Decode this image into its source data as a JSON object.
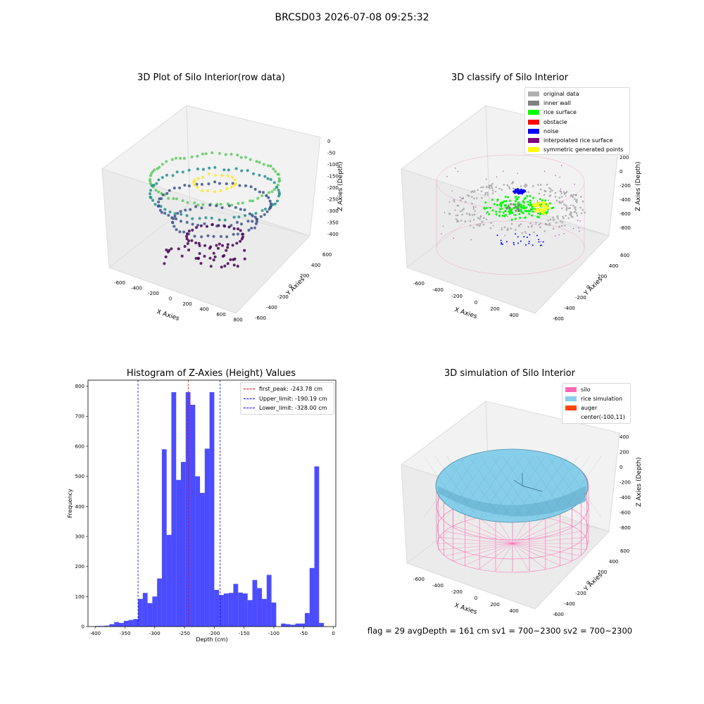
{
  "figure": {
    "suptitle": "BRCSD03 2026-07-08 09:25:32",
    "status_line": "flag = 29  avgDepth = 161 cm  sv1 = 700~2300  sv2 = 700~2300"
  },
  "panels": {
    "raw": {
      "title": "3D Plot of Silo Interior(row data)",
      "xlabel": "X Axies",
      "ylabel": "Y Axies",
      "zlabel": "Z Axies (Depth)",
      "xticks": [
        "-600",
        "-400",
        "-200",
        "0",
        "200",
        "400",
        "600",
        "800"
      ],
      "yticks": [
        "-600",
        "-400",
        "-200",
        "0",
        "200",
        "400",
        "600"
      ],
      "zticks": [
        "0",
        "-50",
        "-100",
        "-150",
        "-200",
        "-250",
        "-300",
        "-350",
        "-400"
      ],
      "colormap": [
        "#440154",
        "#3b528b",
        "#21918c",
        "#5ec962",
        "#fde725"
      ]
    },
    "classify": {
      "title": "3D classify of Silo Interior",
      "xlabel": "X Axies",
      "ylabel": "Y Axies",
      "zlabel": "Z Axies (Depth)",
      "xticks": [
        "-600",
        "-400",
        "-200",
        "0",
        "200",
        "400"
      ],
      "yticks": [
        "-600",
        "-400",
        "-200",
        "0",
        "200",
        "400",
        "600"
      ],
      "zticks": [
        "200",
        "0",
        "-200",
        "-400",
        "-600",
        "-800"
      ],
      "legend": [
        {
          "label": "original data",
          "color": "#b0b0b0"
        },
        {
          "label": "inner wall",
          "color": "#808080"
        },
        {
          "label": "rice surface",
          "color": "#00ff00"
        },
        {
          "label": "obstacle",
          "color": "#ff0000"
        },
        {
          "label": "noise",
          "color": "#0000ff"
        },
        {
          "label": "interpolated rice surface",
          "color": "#800080"
        },
        {
          "label": "symmetric generated points",
          "color": "#ffff00"
        }
      ]
    },
    "simulation": {
      "title": "3D simulation of Silo Interior",
      "xlabel": "X Axies",
      "ylabel": "Y Axies",
      "zlabel": "Z Axies (Depth)",
      "xticks": [
        "-600",
        "-400",
        "-200",
        "0",
        "200",
        "400"
      ],
      "yticks": [
        "-600",
        "-400",
        "-200",
        "0",
        "200",
        "400",
        "600"
      ],
      "zticks": [
        "400",
        "200",
        "0",
        "-200",
        "-400",
        "-600",
        "-800"
      ],
      "legend": [
        {
          "label": "silo",
          "color": "#ff69b4"
        },
        {
          "label": "rice simulation",
          "color": "#87ceeb"
        },
        {
          "label": "auger",
          "color": "#ff4500"
        },
        {
          "label": "center(-100,11)",
          "color": "#ffffff"
        }
      ]
    }
  },
  "chart_data": {
    "type": "bar",
    "title": "Histogram of Z-Axies (Height) Values",
    "xlabel": "Depth (cm)",
    "ylabel": "Frequency",
    "xlim": [
      -412,
      4
    ],
    "ylim": [
      0,
      820
    ],
    "xticks": [
      -400,
      -350,
      -300,
      -250,
      -200,
      -150,
      -100,
      -50,
      0
    ],
    "yticks": [
      0,
      100,
      200,
      300,
      400,
      500,
      600,
      700,
      800
    ],
    "bar_color": "#0000ff",
    "bins": {
      "left_edges": [
        -400,
        -392,
        -384,
        -376,
        -368,
        -360,
        -352,
        -344,
        -336,
        -328,
        -320,
        -312,
        -304,
        -296,
        -288,
        -280,
        -272,
        -264,
        -256,
        -248,
        -240,
        -232,
        -224,
        -216,
        -208,
        -200,
        -192,
        -184,
        -176,
        -168,
        -160,
        -152,
        -144,
        -136,
        -128,
        -120,
        -112,
        -104,
        -96,
        -88,
        -80,
        -72,
        -64,
        -56,
        -48,
        -40,
        -32,
        -24
      ],
      "width": 8,
      "counts": [
        2,
        2,
        3,
        8,
        15,
        12,
        19,
        22,
        25,
        92,
        112,
        78,
        100,
        160,
        590,
        305,
        780,
        488,
        548,
        780,
        738,
        500,
        445,
        592,
        780,
        122,
        105,
        110,
        112,
        142,
        113,
        110,
        88,
        155,
        128,
        92,
        172,
        80,
        0,
        10,
        8,
        6,
        10,
        10,
        45,
        195,
        533,
        12
      ]
    },
    "reference_lines": [
      {
        "label": "first_peak: -243.78 cm",
        "x": -243.78,
        "color": "#ff0000"
      },
      {
        "label": "Upper_limit: -190.19 cm",
        "x": -190.19,
        "color": "#0000ff"
      },
      {
        "label": "Lower_limit: -328.00 cm",
        "x": -328.0,
        "color": "#0000ff"
      }
    ],
    "legend_placement": "top-right"
  }
}
